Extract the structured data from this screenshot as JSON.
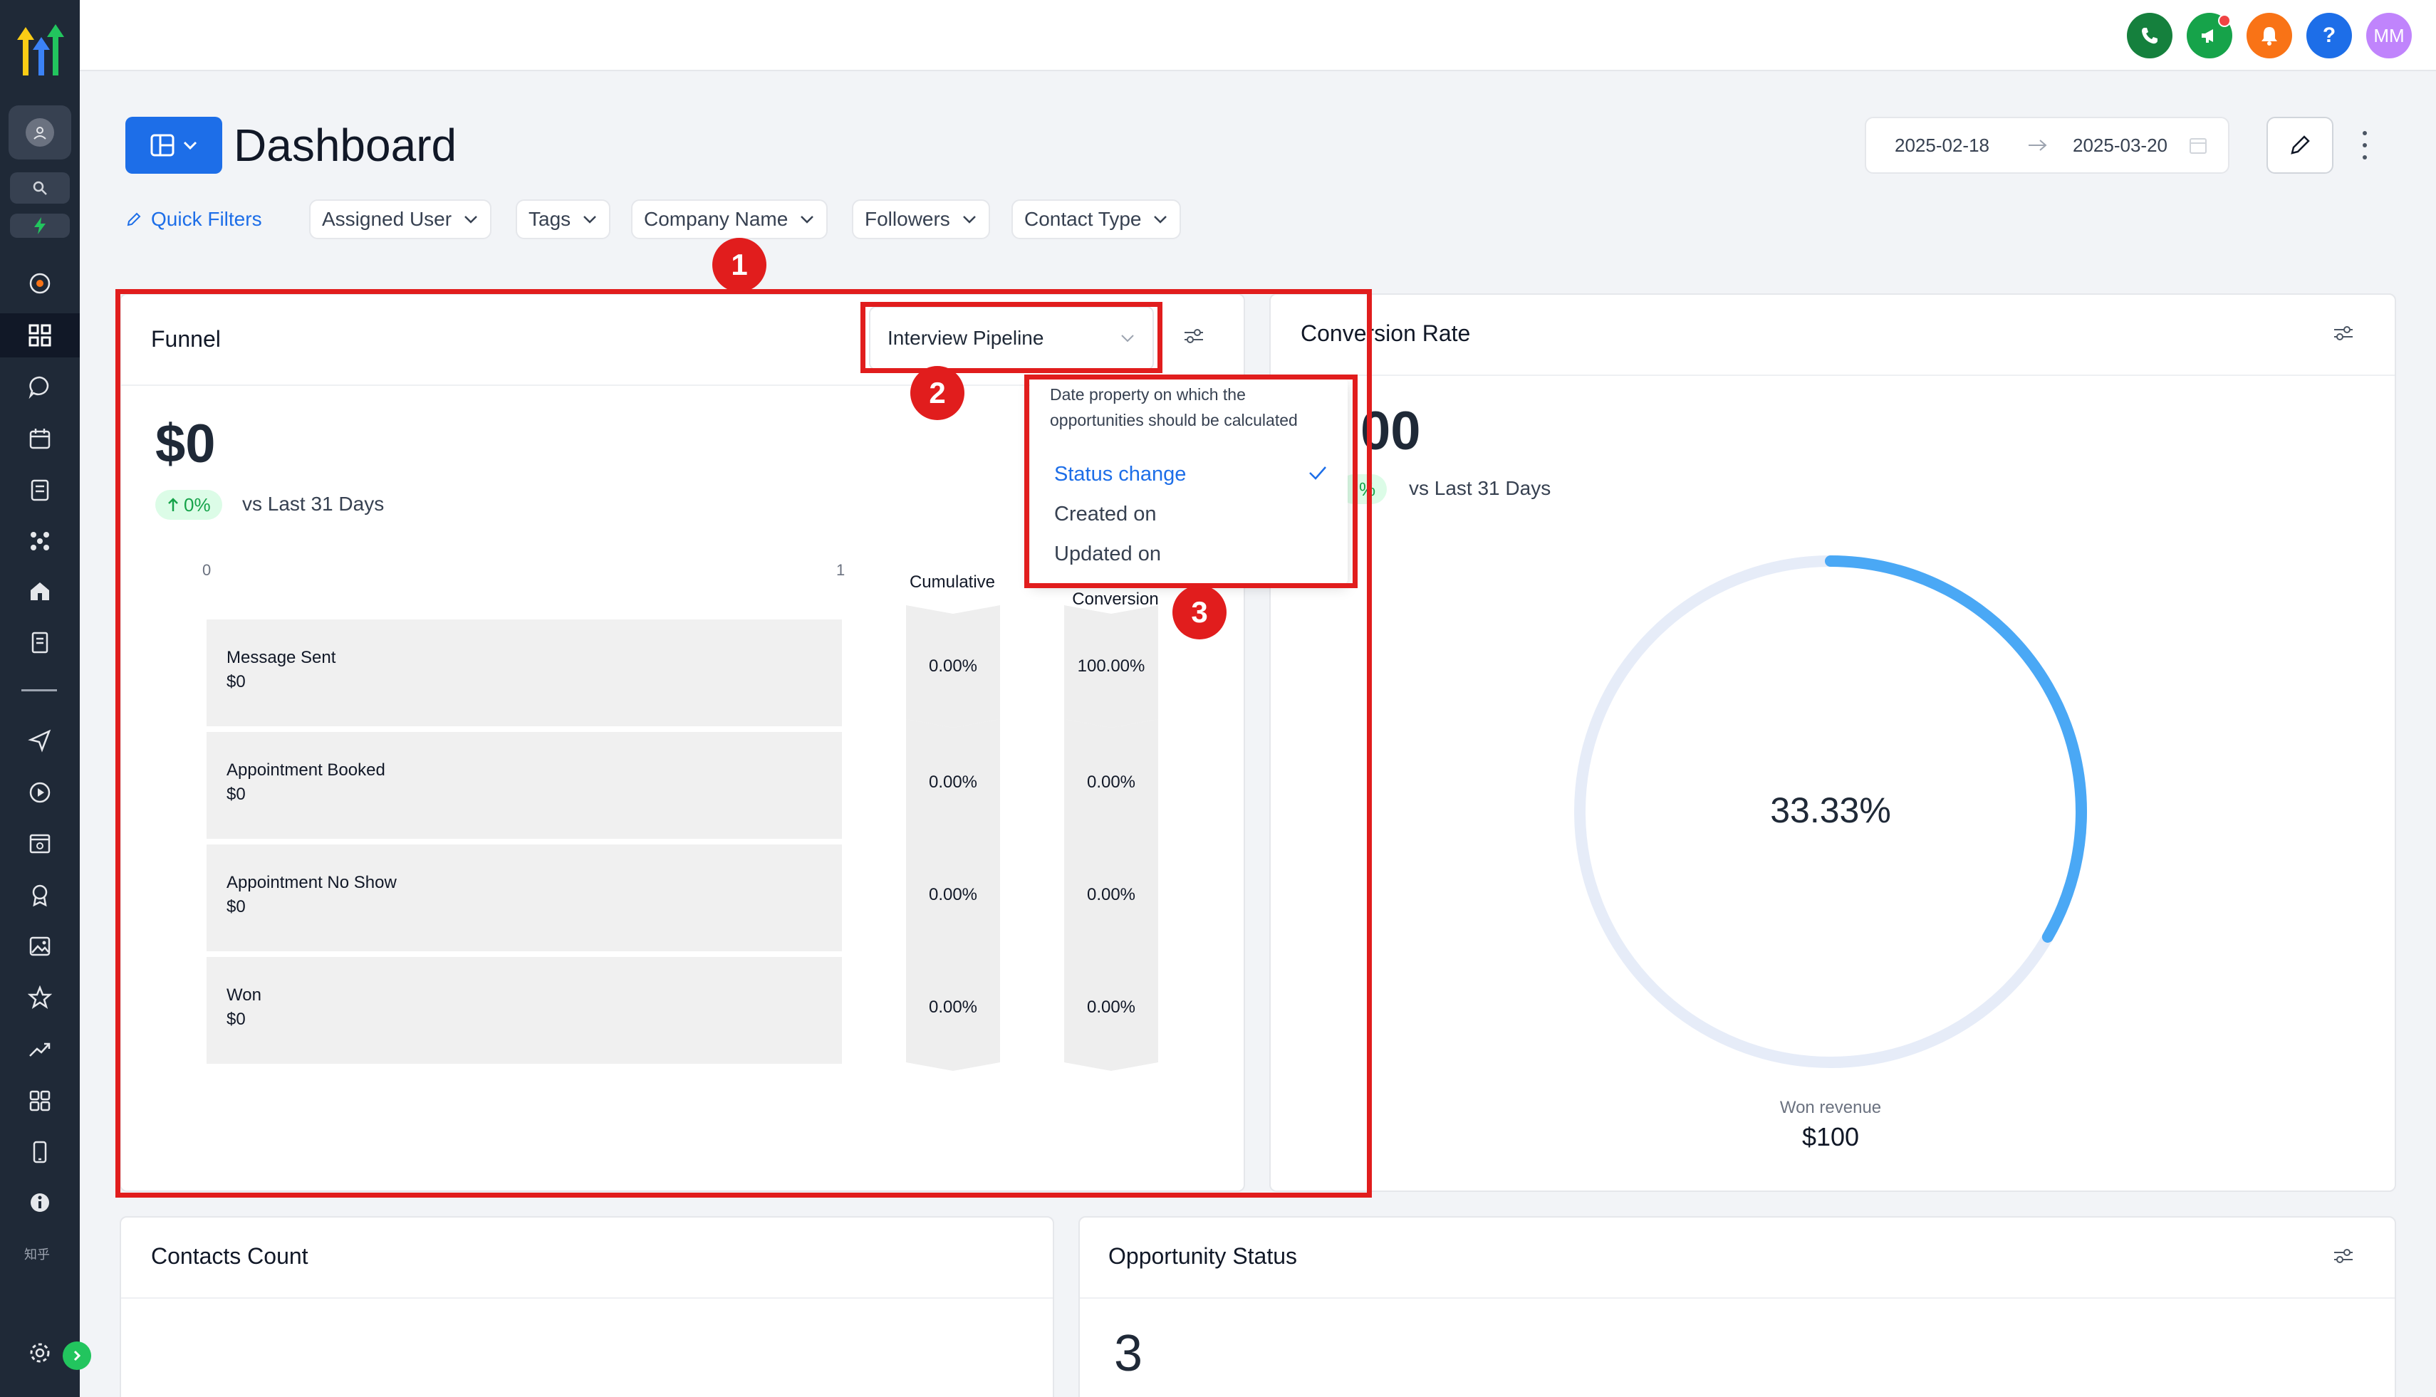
{
  "topbar": {
    "buttons": [
      {
        "icon": "phone-icon",
        "color": "#15803d"
      },
      {
        "icon": "megaphone-icon",
        "color": "#16a34a"
      },
      {
        "icon": "bell-icon",
        "color": "#f97316"
      },
      {
        "icon": "help-icon",
        "color": "#1d6ee8",
        "label": "?"
      },
      {
        "icon": "avatar",
        "color": "#c084fc",
        "label": "MM"
      }
    ]
  },
  "header": {
    "title": "Dashboard",
    "date_start": "2025-02-18",
    "date_end": "2025-03-20"
  },
  "filters": {
    "quick_filters_label": "Quick Filters",
    "chips": [
      "Assigned User",
      "Tags",
      "Company Name",
      "Followers",
      "Contact Type"
    ]
  },
  "sidebar": {
    "lang_label": "知乎"
  },
  "funnel": {
    "title": "Funnel",
    "pipeline": "Interview Pipeline",
    "total_value": "$0",
    "delta": "0%",
    "delta_text": "vs Last 31 Days",
    "axis_min": "0",
    "axis_max": "1",
    "cumulative_label": "Cumulative",
    "conversion_label": "Conversion",
    "stages": [
      {
        "name": "Message Sent",
        "value": "$0",
        "cumulative": "0.00%",
        "conversion": "100.00%"
      },
      {
        "name": "Appointment Booked",
        "value": "$0",
        "cumulative": "0.00%",
        "conversion": "0.00%"
      },
      {
        "name": "Appointment No Show",
        "value": "$0",
        "cumulative": "0.00%",
        "conversion": "0.00%"
      },
      {
        "name": "Won",
        "value": "$0",
        "cumulative": "0.00%",
        "conversion": "0.00%"
      }
    ]
  },
  "date_dropdown": {
    "description": "Date property on which the opportunities should be calculated",
    "options": [
      "Status change",
      "Created on",
      "Updated on"
    ],
    "selected": "Status change"
  },
  "conversion": {
    "title": "Conversion Rate",
    "value_partial": "00",
    "delta_partial": "%",
    "delta_text": "vs Last 31 Days",
    "rate": "33.33%",
    "rate_fraction": 0.3333,
    "won_label": "Won revenue",
    "won_value": "$100"
  },
  "contacts": {
    "title": "Contacts Count"
  },
  "opportunity_status": {
    "title": "Opportunity Status",
    "value": "3"
  },
  "annotations": [
    "1",
    "2",
    "3"
  ],
  "colors": {
    "primary": "#1d6ee8",
    "annotation": "#e11d1d",
    "gauge": "#4aa8f5",
    "gauge_track": "#e6ecf8",
    "positive": "#16a34a"
  }
}
